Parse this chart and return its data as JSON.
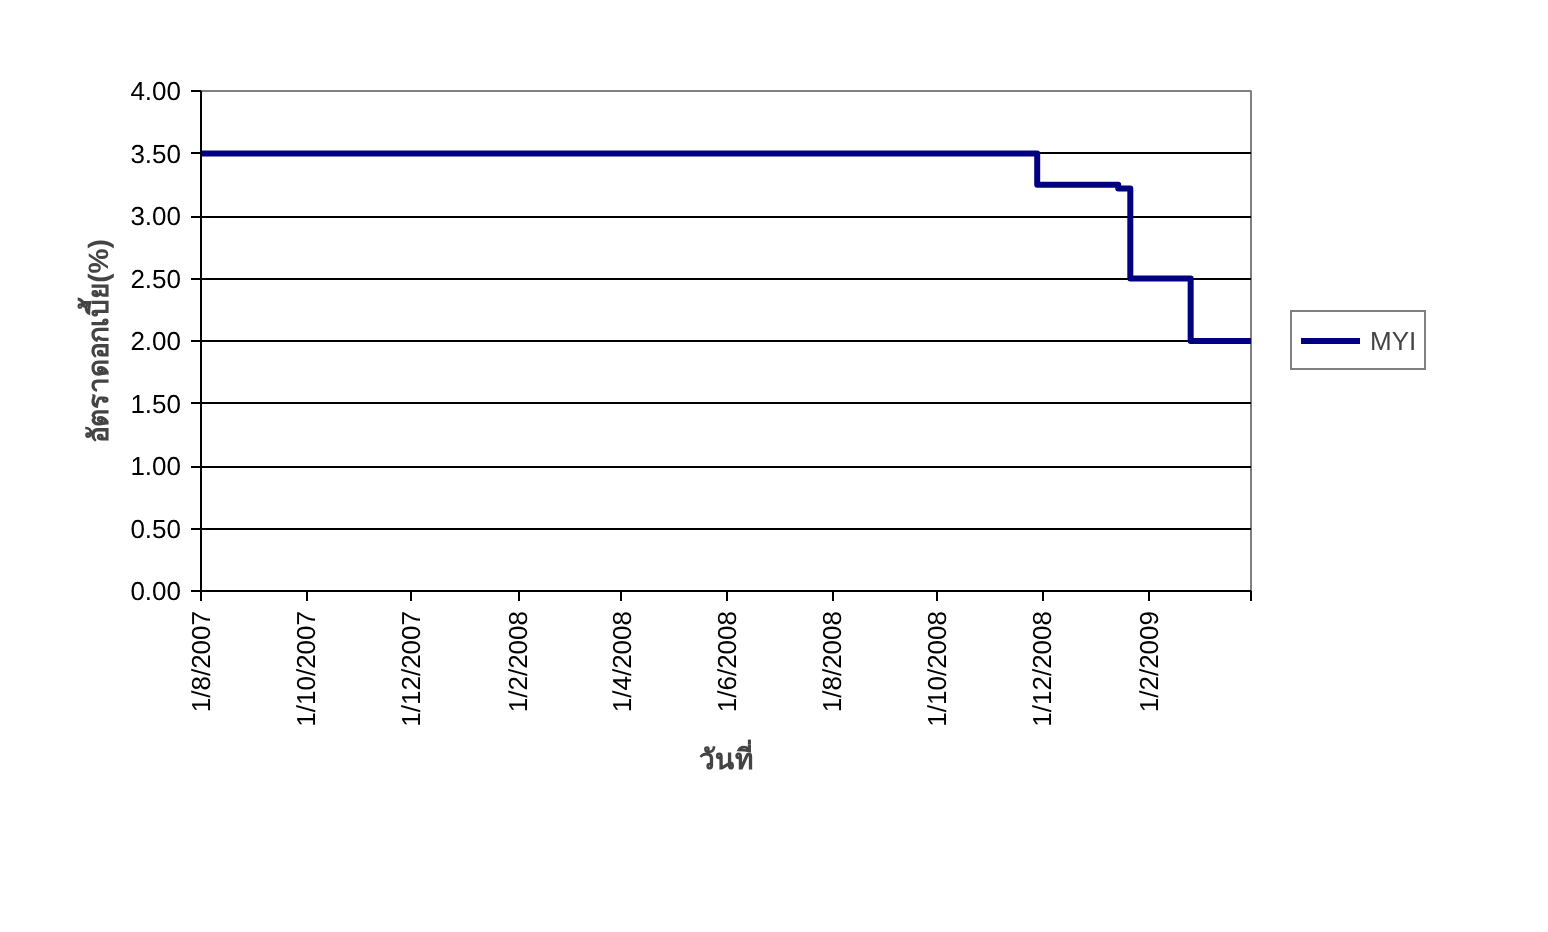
{
  "chart_data": {
    "type": "step",
    "xlabel": "วันที่",
    "ylabel": "อัตราดอกเบี้ย(%)",
    "x": [
      "2007-08-01",
      "2008-11-28",
      "2009-01-14",
      "2009-01-21",
      "2009-02-25",
      "2009-04-01"
    ],
    "series": [
      {
        "name": "MYI",
        "color": "#000080",
        "values": [
          3.5,
          3.25,
          3.22,
          2.5,
          2.0,
          2.0
        ]
      }
    ],
    "xlim": [
      "2007-08-01",
      "2009-04-01"
    ],
    "xticks": [
      {
        "value": "2007-08-01",
        "label": "1/8/2007"
      },
      {
        "value": "2007-10-01",
        "label": "1/10/2007"
      },
      {
        "value": "2007-12-01",
        "label": "1/12/2007"
      },
      {
        "value": "2008-02-01",
        "label": "1/2/2008"
      },
      {
        "value": "2008-04-01",
        "label": "1/4/2008"
      },
      {
        "value": "2008-06-01",
        "label": "1/6/2008"
      },
      {
        "value": "2008-08-01",
        "label": "1/8/2008"
      },
      {
        "value": "2008-10-01",
        "label": "1/10/2008"
      },
      {
        "value": "2008-12-01",
        "label": "1/12/2008"
      },
      {
        "value": "2009-02-01",
        "label": "1/2/2009"
      },
      {
        "value": "2009-04-01",
        "label": null
      }
    ],
    "ylim": [
      0,
      4
    ],
    "yticks": [
      {
        "value": 0,
        "label": "0.00"
      },
      {
        "value": 0.5,
        "label": "0.50"
      },
      {
        "value": 1,
        "label": "1.00"
      },
      {
        "value": 1.5,
        "label": "1.50"
      },
      {
        "value": 2,
        "label": "2.00"
      },
      {
        "value": 2.5,
        "label": "2.50"
      },
      {
        "value": 3,
        "label": "3.00"
      },
      {
        "value": 3.5,
        "label": "3.50"
      },
      {
        "value": 4,
        "label": "4.00"
      }
    ],
    "grid": "y",
    "legend": "right",
    "line_style": "solid",
    "marker": "none"
  }
}
